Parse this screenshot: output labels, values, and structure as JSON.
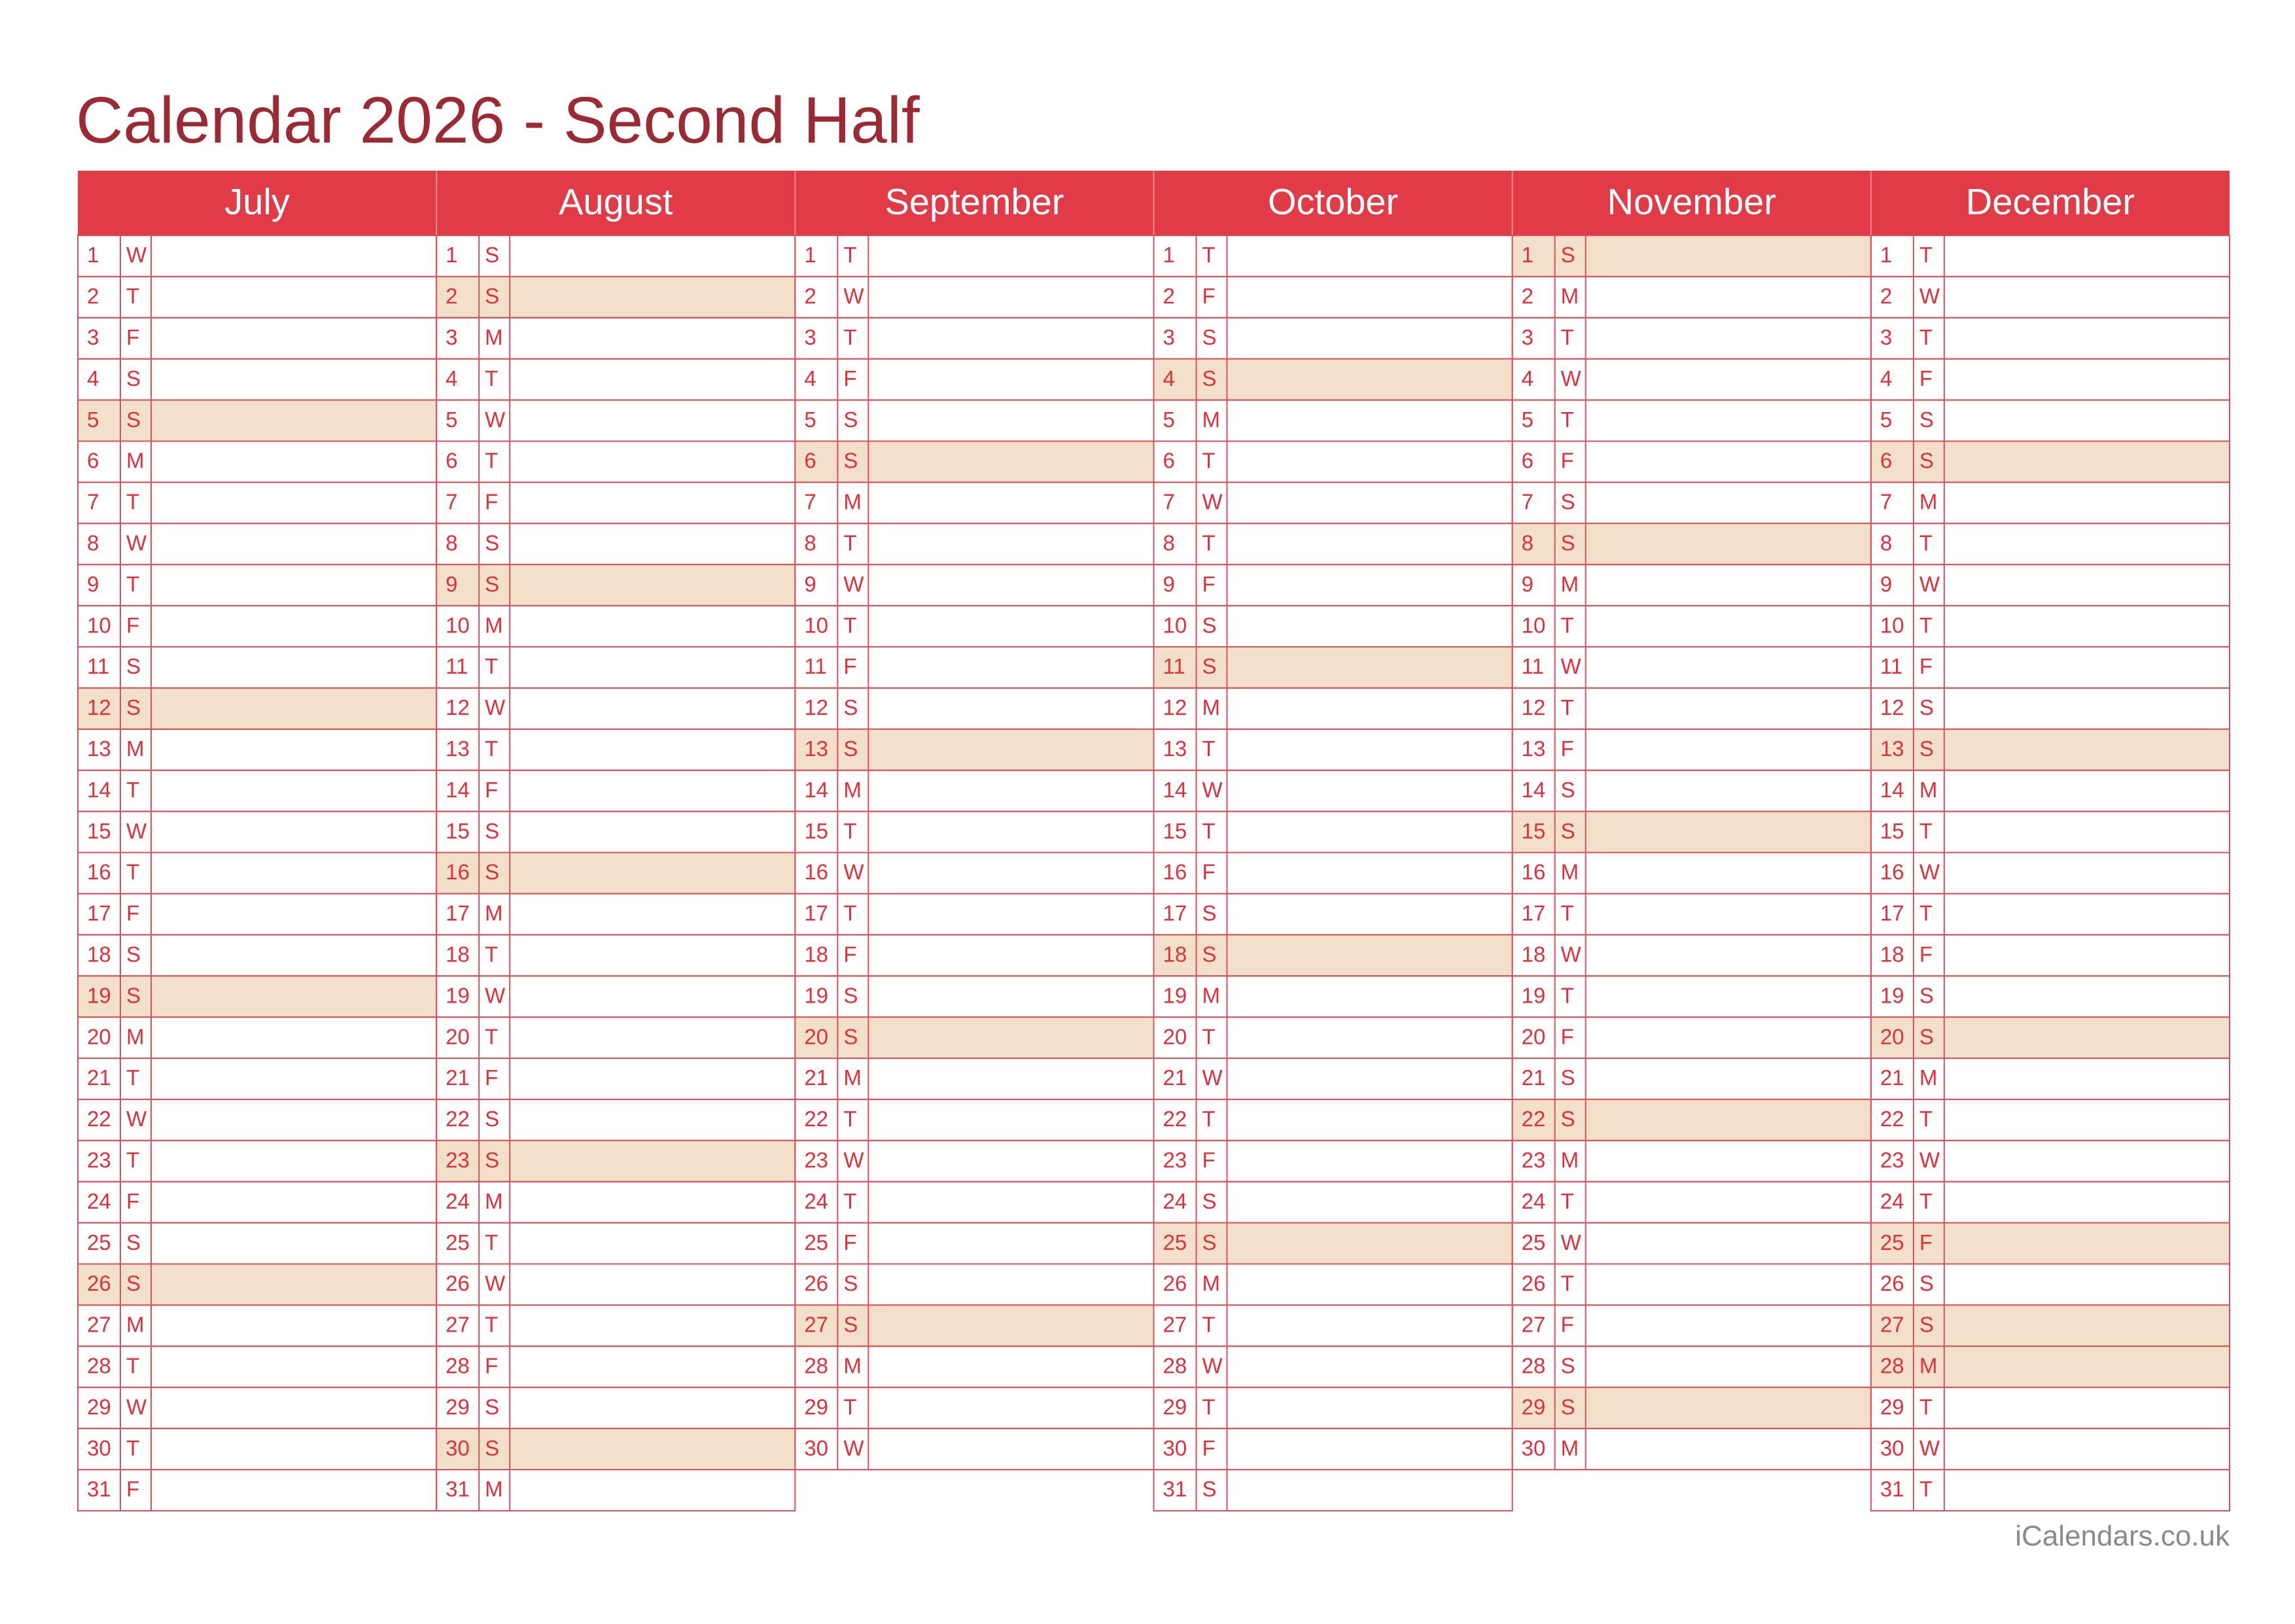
{
  "title": "Calendar 2026 - Second Half",
  "footer": "iCalendars.co.uk",
  "months": [
    {
      "name": "July",
      "shaded": [
        5,
        12,
        19,
        26
      ],
      "days": [
        [
          1,
          "W"
        ],
        [
          2,
          "T"
        ],
        [
          3,
          "F"
        ],
        [
          4,
          "S"
        ],
        [
          5,
          "S"
        ],
        [
          6,
          "M"
        ],
        [
          7,
          "T"
        ],
        [
          8,
          "W"
        ],
        [
          9,
          "T"
        ],
        [
          10,
          "F"
        ],
        [
          11,
          "S"
        ],
        [
          12,
          "S"
        ],
        [
          13,
          "M"
        ],
        [
          14,
          "T"
        ],
        [
          15,
          "W"
        ],
        [
          16,
          "T"
        ],
        [
          17,
          "F"
        ],
        [
          18,
          "S"
        ],
        [
          19,
          "S"
        ],
        [
          20,
          "M"
        ],
        [
          21,
          "T"
        ],
        [
          22,
          "W"
        ],
        [
          23,
          "T"
        ],
        [
          24,
          "F"
        ],
        [
          25,
          "S"
        ],
        [
          26,
          "S"
        ],
        [
          27,
          "M"
        ],
        [
          28,
          "T"
        ],
        [
          29,
          "W"
        ],
        [
          30,
          "T"
        ],
        [
          31,
          "F"
        ]
      ]
    },
    {
      "name": "August",
      "shaded": [
        2,
        9,
        16,
        23,
        30
      ],
      "days": [
        [
          1,
          "S"
        ],
        [
          2,
          "S"
        ],
        [
          3,
          "M"
        ],
        [
          4,
          "T"
        ],
        [
          5,
          "W"
        ],
        [
          6,
          "T"
        ],
        [
          7,
          "F"
        ],
        [
          8,
          "S"
        ],
        [
          9,
          "S"
        ],
        [
          10,
          "M"
        ],
        [
          11,
          "T"
        ],
        [
          12,
          "W"
        ],
        [
          13,
          "T"
        ],
        [
          14,
          "F"
        ],
        [
          15,
          "S"
        ],
        [
          16,
          "S"
        ],
        [
          17,
          "M"
        ],
        [
          18,
          "T"
        ],
        [
          19,
          "W"
        ],
        [
          20,
          "T"
        ],
        [
          21,
          "F"
        ],
        [
          22,
          "S"
        ],
        [
          23,
          "S"
        ],
        [
          24,
          "M"
        ],
        [
          25,
          "T"
        ],
        [
          26,
          "W"
        ],
        [
          27,
          "T"
        ],
        [
          28,
          "F"
        ],
        [
          29,
          "S"
        ],
        [
          30,
          "S"
        ],
        [
          31,
          "M"
        ]
      ]
    },
    {
      "name": "September",
      "shaded": [
        6,
        13,
        20,
        27
      ],
      "days": [
        [
          1,
          "T"
        ],
        [
          2,
          "W"
        ],
        [
          3,
          "T"
        ],
        [
          4,
          "F"
        ],
        [
          5,
          "S"
        ],
        [
          6,
          "S"
        ],
        [
          7,
          "M"
        ],
        [
          8,
          "T"
        ],
        [
          9,
          "W"
        ],
        [
          10,
          "T"
        ],
        [
          11,
          "F"
        ],
        [
          12,
          "S"
        ],
        [
          13,
          "S"
        ],
        [
          14,
          "M"
        ],
        [
          15,
          "T"
        ],
        [
          16,
          "W"
        ],
        [
          17,
          "T"
        ],
        [
          18,
          "F"
        ],
        [
          19,
          "S"
        ],
        [
          20,
          "S"
        ],
        [
          21,
          "M"
        ],
        [
          22,
          "T"
        ],
        [
          23,
          "W"
        ],
        [
          24,
          "T"
        ],
        [
          25,
          "F"
        ],
        [
          26,
          "S"
        ],
        [
          27,
          "S"
        ],
        [
          28,
          "M"
        ],
        [
          29,
          "T"
        ],
        [
          30,
          "W"
        ]
      ]
    },
    {
      "name": "October",
      "shaded": [
        4,
        11,
        18,
        25
      ],
      "days": [
        [
          1,
          "T"
        ],
        [
          2,
          "F"
        ],
        [
          3,
          "S"
        ],
        [
          4,
          "S"
        ],
        [
          5,
          "M"
        ],
        [
          6,
          "T"
        ],
        [
          7,
          "W"
        ],
        [
          8,
          "T"
        ],
        [
          9,
          "F"
        ],
        [
          10,
          "S"
        ],
        [
          11,
          "S"
        ],
        [
          12,
          "M"
        ],
        [
          13,
          "T"
        ],
        [
          14,
          "W"
        ],
        [
          15,
          "T"
        ],
        [
          16,
          "F"
        ],
        [
          17,
          "S"
        ],
        [
          18,
          "S"
        ],
        [
          19,
          "M"
        ],
        [
          20,
          "T"
        ],
        [
          21,
          "W"
        ],
        [
          22,
          "T"
        ],
        [
          23,
          "F"
        ],
        [
          24,
          "S"
        ],
        [
          25,
          "S"
        ],
        [
          26,
          "M"
        ],
        [
          27,
          "T"
        ],
        [
          28,
          "W"
        ],
        [
          29,
          "T"
        ],
        [
          30,
          "F"
        ],
        [
          31,
          "S"
        ]
      ]
    },
    {
      "name": "November",
      "shaded": [
        1,
        8,
        15,
        22,
        29
      ],
      "days": [
        [
          1,
          "S"
        ],
        [
          2,
          "M"
        ],
        [
          3,
          "T"
        ],
        [
          4,
          "W"
        ],
        [
          5,
          "T"
        ],
        [
          6,
          "F"
        ],
        [
          7,
          "S"
        ],
        [
          8,
          "S"
        ],
        [
          9,
          "M"
        ],
        [
          10,
          "T"
        ],
        [
          11,
          "W"
        ],
        [
          12,
          "T"
        ],
        [
          13,
          "F"
        ],
        [
          14,
          "S"
        ],
        [
          15,
          "S"
        ],
        [
          16,
          "M"
        ],
        [
          17,
          "T"
        ],
        [
          18,
          "W"
        ],
        [
          19,
          "T"
        ],
        [
          20,
          "F"
        ],
        [
          21,
          "S"
        ],
        [
          22,
          "S"
        ],
        [
          23,
          "M"
        ],
        [
          24,
          "T"
        ],
        [
          25,
          "W"
        ],
        [
          26,
          "T"
        ],
        [
          27,
          "F"
        ],
        [
          28,
          "S"
        ],
        [
          29,
          "S"
        ],
        [
          30,
          "M"
        ]
      ]
    },
    {
      "name": "December",
      "shaded": [
        6,
        13,
        20,
        25,
        27,
        28
      ],
      "days": [
        [
          1,
          "T"
        ],
        [
          2,
          "W"
        ],
        [
          3,
          "T"
        ],
        [
          4,
          "F"
        ],
        [
          5,
          "S"
        ],
        [
          6,
          "S"
        ],
        [
          7,
          "M"
        ],
        [
          8,
          "T"
        ],
        [
          9,
          "W"
        ],
        [
          10,
          "T"
        ],
        [
          11,
          "F"
        ],
        [
          12,
          "S"
        ],
        [
          13,
          "S"
        ],
        [
          14,
          "M"
        ],
        [
          15,
          "T"
        ],
        [
          16,
          "W"
        ],
        [
          17,
          "T"
        ],
        [
          18,
          "F"
        ],
        [
          19,
          "S"
        ],
        [
          20,
          "S"
        ],
        [
          21,
          "M"
        ],
        [
          22,
          "T"
        ],
        [
          23,
          "W"
        ],
        [
          24,
          "T"
        ],
        [
          25,
          "F"
        ],
        [
          26,
          "S"
        ],
        [
          27,
          "S"
        ],
        [
          28,
          "M"
        ],
        [
          29,
          "T"
        ],
        [
          30,
          "W"
        ],
        [
          31,
          "T"
        ]
      ]
    }
  ]
}
